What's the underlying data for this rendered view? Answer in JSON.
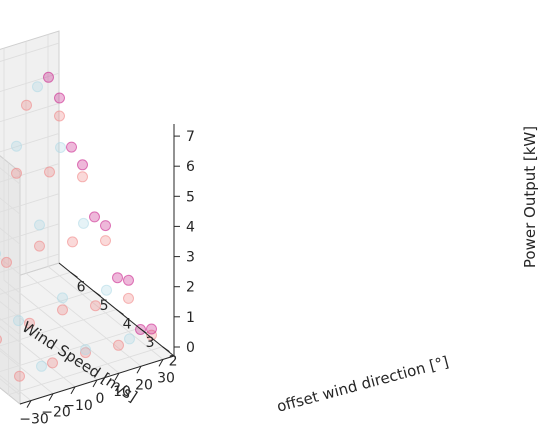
{
  "chart_data": {
    "type": "scatter",
    "projection": "3d",
    "grid": true,
    "legend": "none",
    "axes": {
      "x": {
        "label": "Wind Speed [m/s]",
        "ticks": [
          2,
          3,
          4,
          5,
          6
        ],
        "range": [
          1.5,
          6.5
        ]
      },
      "y": {
        "label": "offset wind direction [°]",
        "ticks": [
          -30,
          -20,
          -10,
          0,
          10,
          20,
          30
        ],
        "range": [
          -35,
          35
        ]
      },
      "z": {
        "label": "Power Output [kW]",
        "ticks": [
          0,
          1,
          2,
          3,
          4,
          5,
          6,
          7
        ],
        "range": [
          -0.3,
          7.4
        ]
      }
    },
    "series": [
      {
        "color": "#f08080",
        "marker_alpha": 0.3,
        "points": [
          [
            2.0,
            -30,
            0.2
          ],
          [
            2.0,
            -15,
            0.3
          ],
          [
            2.0,
            0,
            0.3
          ],
          [
            2.0,
            15,
            0.2
          ],
          [
            2.0,
            30,
            0.2
          ],
          [
            3.0,
            -30,
            0.8
          ],
          [
            3.0,
            -15,
            1.0
          ],
          [
            3.0,
            0,
            1.1
          ],
          [
            3.0,
            15,
            0.9
          ],
          [
            3.0,
            30,
            0.8
          ],
          [
            4.0,
            -30,
            2.0
          ],
          [
            4.0,
            -15,
            2.4
          ],
          [
            4.0,
            0,
            2.6
          ],
          [
            4.0,
            15,
            2.4
          ],
          [
            4.0,
            30,
            2.1
          ],
          [
            5.0,
            -30,
            3.4
          ],
          [
            5.0,
            -15,
            4.0
          ],
          [
            5.0,
            0,
            4.4
          ],
          [
            5.0,
            15,
            4.1
          ],
          [
            5.0,
            30,
            3.6
          ],
          [
            6.0,
            -30,
            4.8
          ],
          [
            6.0,
            -15,
            5.6
          ],
          [
            6.0,
            0,
            6.1
          ],
          [
            6.0,
            15,
            5.7
          ],
          [
            6.0,
            30,
            5.0
          ]
        ]
      },
      {
        "color": "#add8e6",
        "marker_alpha": 0.3,
        "points": [
          [
            2.0,
            -20,
            0.3
          ],
          [
            2.0,
            0,
            0.4
          ],
          [
            2.0,
            20,
            0.3
          ],
          [
            3.0,
            -20,
            1.2
          ],
          [
            3.0,
            0,
            1.5
          ],
          [
            3.0,
            20,
            1.3
          ],
          [
            4.0,
            -20,
            2.8
          ],
          [
            4.0,
            0,
            3.3
          ],
          [
            4.0,
            20,
            2.9
          ],
          [
            5.0,
            -20,
            4.6
          ],
          [
            5.0,
            0,
            5.3
          ],
          [
            5.0,
            20,
            4.8
          ],
          [
            6.0,
            -20,
            6.0
          ],
          [
            6.0,
            0,
            6.6
          ],
          [
            6.0,
            20,
            6.2
          ]
        ]
      },
      {
        "color": "#c71585",
        "marker_alpha": 0.3,
        "points": [
          [
            2.0,
            25,
            0.5
          ],
          [
            2.0,
            30,
            0.4
          ],
          [
            3.0,
            25,
            1.6
          ],
          [
            3.0,
            30,
            1.4
          ],
          [
            4.0,
            25,
            3.0
          ],
          [
            4.0,
            30,
            2.6
          ],
          [
            5.0,
            25,
            4.7
          ],
          [
            5.0,
            30,
            4.0
          ],
          [
            6.0,
            25,
            6.4
          ],
          [
            6.0,
            30,
            5.6
          ]
        ]
      }
    ]
  }
}
